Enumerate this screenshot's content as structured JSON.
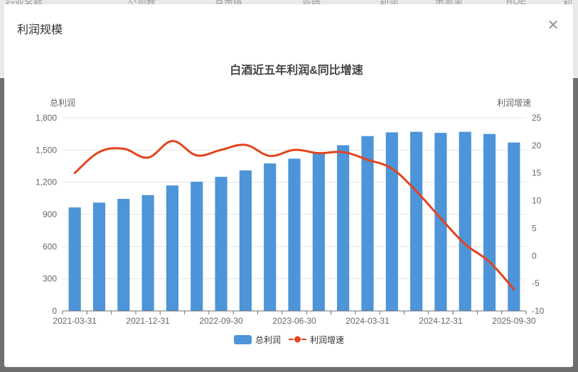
{
  "background_table": {
    "headers": [
      "行业名称",
      "公司数",
      "总市值",
      "业绩",
      "利润",
      "市盈率",
      "ROE",
      "利"
    ]
  },
  "modal": {
    "title": "利润规模",
    "close_icon": "close-icon"
  },
  "chart_data": {
    "type": "bar+line",
    "title": "白酒近五年利润&同比增速",
    "y_left_label": "总利润",
    "y_right_label": "利润增速",
    "y_left_range": [
      0,
      1800
    ],
    "y_left_ticks": [
      "0",
      "300",
      "600",
      "900",
      "1,200",
      "1,500",
      "1,800"
    ],
    "y_right_range": [
      -10,
      25
    ],
    "y_right_ticks": [
      "-10",
      "-5",
      "0",
      "5",
      "10",
      "15",
      "20",
      "25"
    ],
    "x_tick_labels": [
      "2021-03-31",
      "2021-12-31",
      "2022-09-30",
      "2023-06-30",
      "2024-03-31",
      "2024-12-31",
      "2025-09-30"
    ],
    "categories": [
      "2021-03-31",
      "2021-06-30",
      "2021-09-30",
      "2021-12-31",
      "2022-03-31",
      "2022-06-30",
      "2022-09-30",
      "2022-12-31",
      "2023-03-31",
      "2023-06-30",
      "2023-09-30",
      "2023-12-31",
      "2024-03-31",
      "2024-06-30",
      "2024-09-30",
      "2024-12-31",
      "2025-03-31",
      "2025-06-30",
      "2025-09-30"
    ],
    "series": [
      {
        "name": "总利润",
        "type": "bar",
        "color": "#4d94d8",
        "values": [
          965,
          1010,
          1045,
          1080,
          1170,
          1205,
          1250,
          1310,
          1375,
          1420,
          1480,
          1545,
          1630,
          1665,
          1670,
          1660,
          1670,
          1650,
          1570
        ]
      },
      {
        "name": "利润增速",
        "type": "line",
        "color": "#e3441f",
        "values": [
          15.0,
          18.8,
          19.4,
          17.8,
          20.8,
          18.2,
          19.2,
          20.1,
          18.1,
          19.2,
          18.6,
          18.8,
          17.4,
          15.8,
          11.7,
          6.8,
          2.1,
          -1.1,
          -6.1
        ]
      }
    ],
    "legend_position": "bottom-center",
    "grid": "horizontal"
  }
}
